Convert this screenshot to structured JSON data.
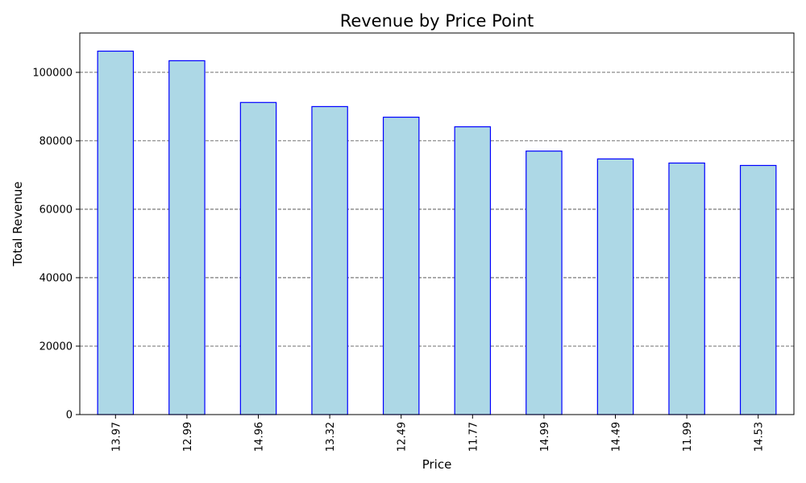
{
  "chart_data": {
    "type": "bar",
    "title": "Revenue by Price Point",
    "xlabel": "Price",
    "ylabel": "Total Revenue",
    "categories": [
      "13.97",
      "12.99",
      "14.96",
      "13.32",
      "12.49",
      "11.77",
      "14.99",
      "14.49",
      "11.99",
      "14.53"
    ],
    "values": [
      106200,
      103400,
      91200,
      90000,
      86900,
      84100,
      77000,
      74700,
      73500,
      72800
    ],
    "ylim": [
      0,
      111500
    ],
    "yticks": [
      0,
      20000,
      40000,
      60000,
      80000,
      100000
    ],
    "ytick_labels": [
      "0",
      "20000",
      "40000",
      "60000",
      "80000",
      "100000"
    ],
    "grid": "y-dashed",
    "colors": {
      "bar_fill": "#add8e6",
      "bar_edge": "#0000ff",
      "grid": "#404040"
    }
  }
}
